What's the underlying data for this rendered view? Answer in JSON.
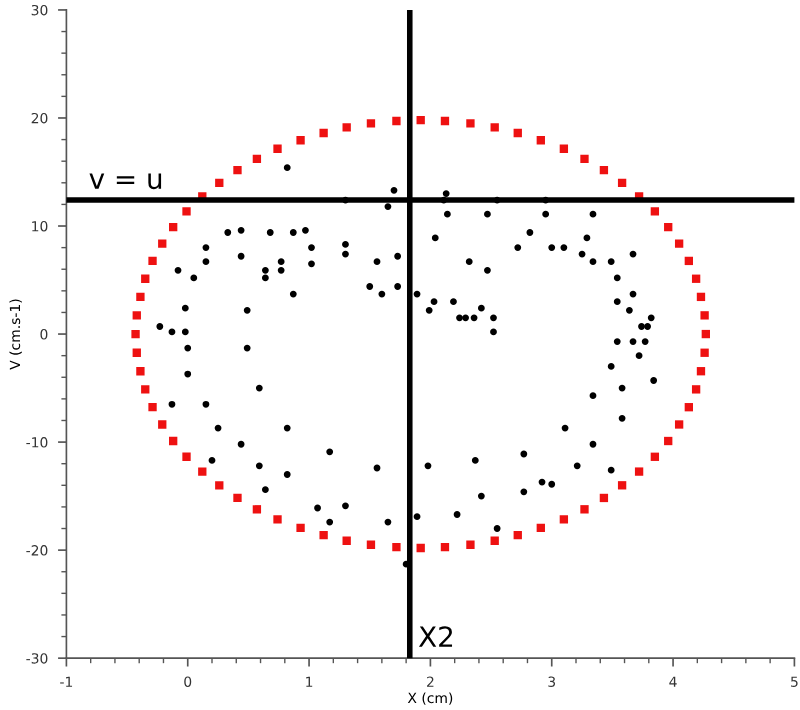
{
  "chart_data": {
    "type": "scatter",
    "xlabel": "X (cm)",
    "ylabel": "V (cm.s-1)",
    "xlim": [
      -1,
      5
    ],
    "ylim": [
      -30,
      30
    ],
    "xticks": [
      -1,
      0,
      1,
      2,
      3,
      4,
      5
    ],
    "yticks": [
      -30,
      -20,
      -10,
      0,
      10,
      20,
      30
    ],
    "grid": false,
    "legend": false,
    "series": [
      {
        "color": "#ee1111",
        "marker": "square",
        "x": [
          4.27,
          4.26,
          4.23,
          4.19,
          4.13,
          4.05,
          3.96,
          3.85,
          3.72,
          3.58,
          3.43,
          3.27,
          3.1,
          2.91,
          2.72,
          2.53,
          2.33,
          2.12,
          1.92,
          1.72,
          1.51,
          1.31,
          1.12,
          0.93,
          0.74,
          0.57,
          0.41,
          0.26,
          0.12,
          -0.01,
          -0.12,
          -0.21,
          -0.29,
          -0.35,
          -0.39,
          -0.42,
          -0.43,
          -0.42,
          -0.39,
          -0.35,
          -0.29,
          -0.21,
          -0.12,
          -0.01,
          0.12,
          0.26,
          0.41,
          0.57,
          0.74,
          0.93,
          1.12,
          1.31,
          1.51,
          1.72,
          1.92,
          2.12,
          2.33,
          2.53,
          2.72,
          2.91,
          3.1,
          3.27,
          3.43,
          3.58,
          3.72,
          3.85,
          3.96,
          4.05,
          4.13,
          4.19,
          4.23,
          4.26
        ],
        "values": [
          0,
          1.73,
          3.44,
          5.12,
          6.77,
          8.37,
          9.9,
          11.36,
          12.73,
          14.0,
          15.17,
          16.22,
          17.15,
          17.94,
          18.61,
          19.13,
          19.5,
          19.72,
          19.8,
          19.72,
          19.5,
          19.13,
          18.61,
          17.94,
          17.15,
          16.22,
          15.17,
          14.0,
          12.73,
          11.36,
          9.9,
          8.37,
          6.77,
          5.12,
          3.44,
          1.73,
          0,
          -1.73,
          -3.44,
          -5.12,
          -6.77,
          -8.37,
          -9.9,
          -11.36,
          -12.73,
          -14.0,
          -15.17,
          -16.22,
          -17.15,
          -17.94,
          -18.61,
          -19.13,
          -19.5,
          -19.72,
          -19.8,
          -19.72,
          -19.5,
          -19.13,
          -18.61,
          -17.94,
          -17.15,
          -16.22,
          -15.17,
          -14.0,
          -12.73,
          -11.36,
          -9.9,
          -8.37,
          -6.77,
          -5.12,
          -3.44,
          -1.73
        ]
      },
      {
        "color": "#000000",
        "marker": "circle",
        "x": [
          -0.23,
          -0.13,
          -0.02,
          -0.02,
          0,
          -0.08,
          0.05,
          0.15,
          0.15,
          0.33,
          0.44,
          0.44,
          0.49,
          0.49,
          0.64,
          0.64,
          0.68,
          0.77,
          0.77,
          0.87,
          0.87,
          0.97,
          1.02,
          1.02,
          0.82,
          1.3,
          1.3,
          1.3,
          1.5,
          1.56,
          1.6,
          1.65,
          1.7,
          1.73,
          1.73,
          2.13,
          2.11,
          2.14,
          2.04,
          1.89,
          1.99,
          2.03,
          2.19,
          2.24,
          2.29,
          2.36,
          2.42,
          2.52,
          2.52,
          2.32,
          2.47,
          2.47,
          2.55,
          2.72,
          2.82,
          2.95,
          2.95,
          3.0,
          3.1,
          3.25,
          3.29,
          3.34,
          3.34,
          3.49,
          3.67,
          3.54,
          3.67,
          3.54,
          3.64,
          3.82,
          3.74,
          3.79,
          3.54,
          3.67,
          3.77,
          3.72,
          0,
          -0.13,
          0.15,
          0.59,
          0.25,
          0.44,
          0.82,
          0.2,
          0.59,
          0.82,
          0.64,
          1.17,
          1.07,
          1.3,
          1.17,
          1.56,
          1.65,
          1.8,
          1.89,
          1.98,
          2.22,
          2.37,
          2.42,
          2.55,
          2.77,
          2.77,
          2.92,
          3.0,
          3.11,
          3.21,
          3.34,
          3.34,
          3.49,
          3.49,
          3.58,
          3.58,
          3.84
        ],
        "values": [
          0.7,
          0.2,
          2.4,
          0.2,
          -1.3,
          5.9,
          5.2,
          8.0,
          6.7,
          9.4,
          9.6,
          7.2,
          2.2,
          -1.3,
          5.9,
          5.2,
          9.4,
          6.7,
          5.9,
          9.4,
          3.7,
          9.6,
          8.0,
          6.5,
          15.4,
          12.4,
          8.3,
          7.4,
          4.4,
          6.7,
          3.7,
          11.8,
          13.3,
          7.2,
          4.4,
          13.0,
          12.4,
          11.1,
          8.9,
          3.7,
          2.2,
          3.0,
          3.0,
          1.5,
          1.5,
          1.5,
          2.4,
          1.5,
          0.2,
          6.7,
          5.9,
          11.1,
          12.4,
          8.0,
          9.4,
          12.4,
          11.1,
          8.0,
          8.0,
          7.4,
          8.9,
          11.1,
          6.7,
          6.7,
          7.4,
          5.2,
          3.7,
          3.0,
          2.2,
          1.5,
          0.7,
          0.7,
          -0.7,
          -0.7,
          -0.7,
          -2.0,
          -3.7,
          -6.5,
          -6.5,
          -5.0,
          -8.7,
          -10.2,
          -8.7,
          -11.7,
          -12.2,
          -13.0,
          -14.4,
          -10.9,
          -16.1,
          -15.9,
          -17.4,
          -12.4,
          -17.4,
          -21.3,
          -16.9,
          -12.2,
          -16.7,
          -11.7,
          -15.0,
          -18.0,
          -11.1,
          -14.6,
          -13.7,
          -13.9,
          -8.7,
          -12.2,
          -5.7,
          -10.2,
          -3.0,
          -12.6,
          -5.0,
          -7.8,
          -4.3
        ]
      }
    ],
    "ref_lines": [
      {
        "axis": "y",
        "value": 12.4,
        "label": "v = u",
        "color": "#000000"
      },
      {
        "axis": "x",
        "value": 1.83,
        "label": "X2",
        "color": "#000000"
      }
    ]
  }
}
